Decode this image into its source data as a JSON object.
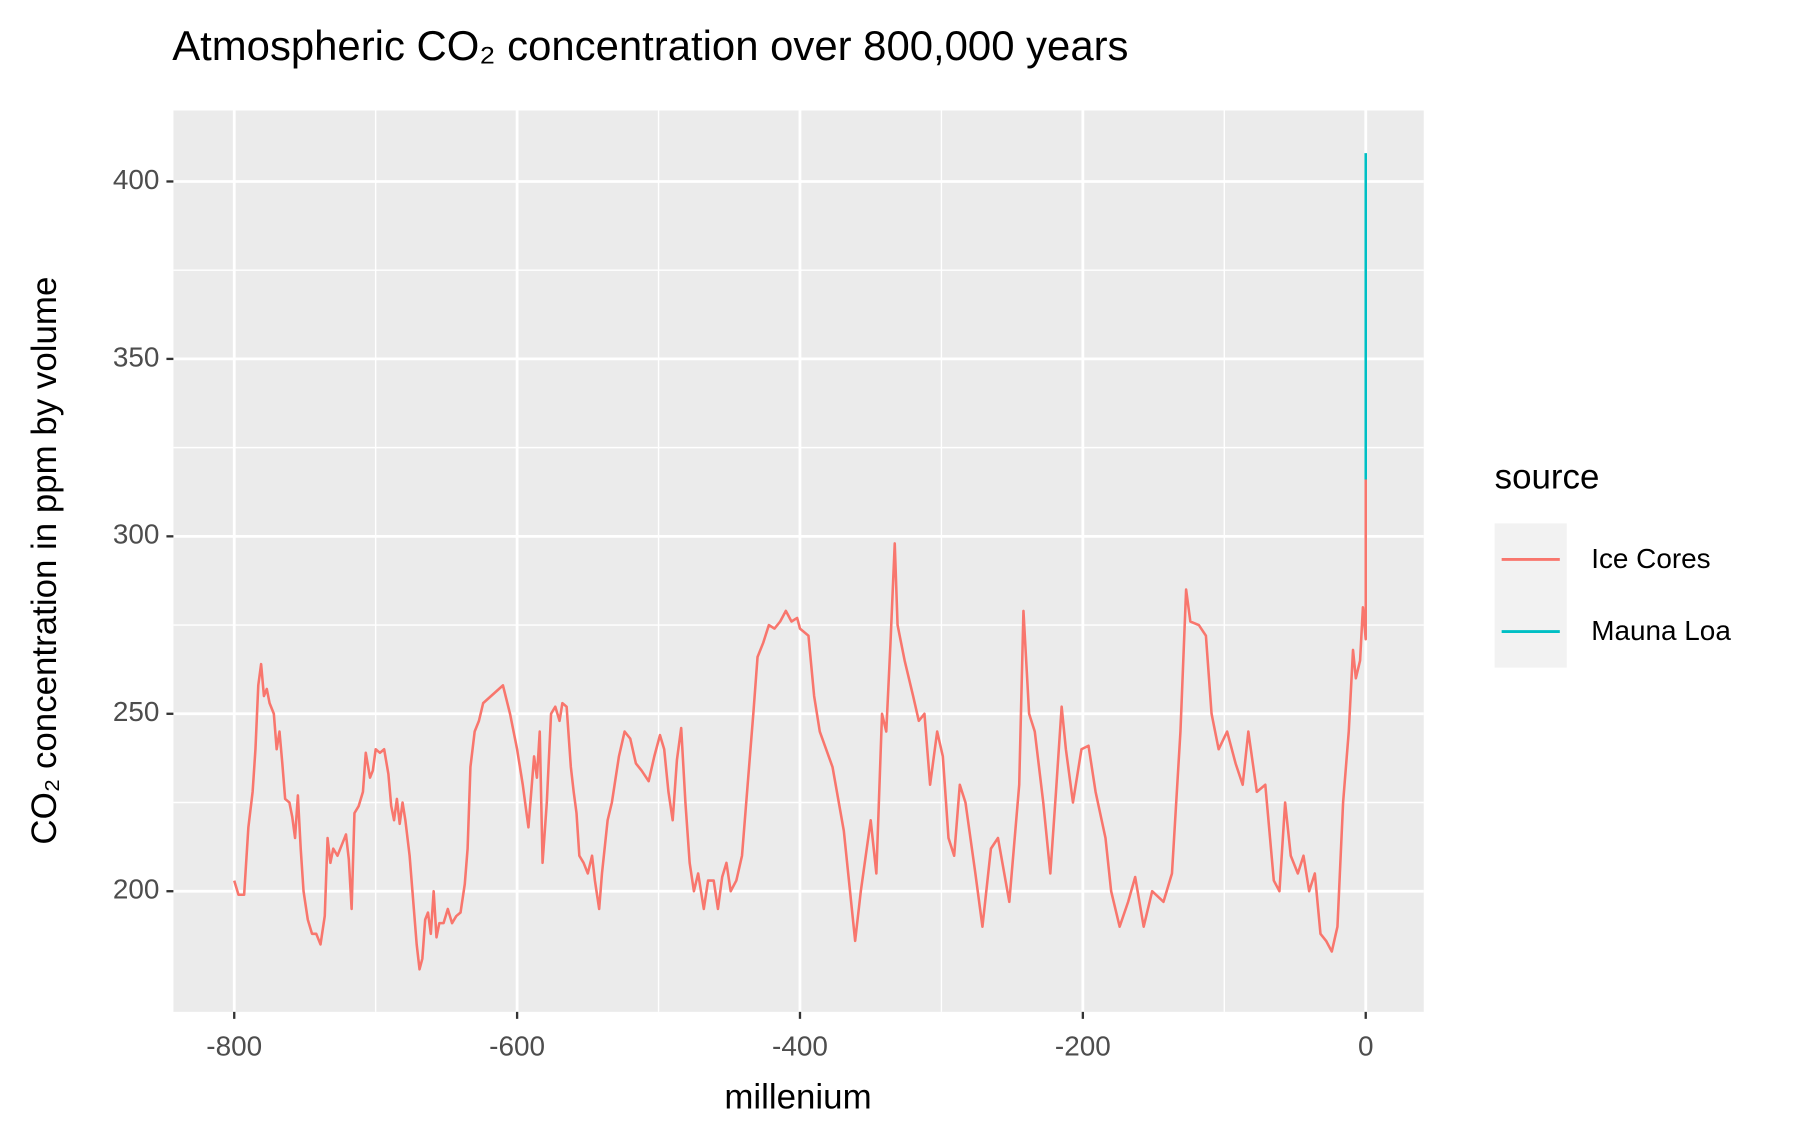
{
  "chart_data": {
    "type": "line",
    "title": "Atmospheric CO₂ concentration over 800,000 years",
    "x_label": "millenium",
    "y_label": "CO₂ concentration in ppm by volume",
    "legend_title": "source",
    "legend_position": "right",
    "grid": true,
    "xlim": [
      -843,
      41
    ],
    "ylim": [
      166,
      420
    ],
    "xticks": [
      -800,
      -600,
      -400,
      -200,
      0
    ],
    "yticks": [
      200,
      250,
      300,
      350,
      400
    ],
    "series": [
      {
        "name": "Ice Cores",
        "color": "#F8766D",
        "x": [
          -800,
          -797,
          -793,
          -790,
          -787,
          -785,
          -783,
          -781,
          -779,
          -777,
          -775,
          -772,
          -770,
          -768,
          -766,
          -764,
          -761,
          -759,
          -757,
          -755,
          -753,
          -751,
          -748,
          -745,
          -742,
          -739,
          -736,
          -734,
          -732,
          -730,
          -727,
          -724,
          -721,
          -719,
          -717,
          -715,
          -712,
          -709,
          -707,
          -704,
          -702,
          -700,
          -697,
          -694,
          -691,
          -689,
          -687,
          -685,
          -683,
          -681,
          -679,
          -676,
          -673,
          -671,
          -669,
          -667,
          -665,
          -663,
          -661,
          -659,
          -657,
          -655,
          -652,
          -649,
          -646,
          -643,
          -640,
          -637,
          -635,
          -633,
          -630,
          -627,
          -624,
          -610,
          -605,
          -600,
          -596,
          -592,
          -590,
          -588,
          -586,
          -584,
          -582,
          -579,
          -576,
          -573,
          -570,
          -568,
          -565,
          -562,
          -560,
          -558,
          -556,
          -553,
          -550,
          -547,
          -545,
          -542,
          -540,
          -536,
          -533,
          -528,
          -524,
          -520,
          -516,
          -512,
          -507,
          -503,
          -499,
          -496,
          -493,
          -490,
          -487,
          -484,
          -481,
          -478,
          -475,
          -472,
          -468,
          -465,
          -461,
          -458,
          -455,
          -452,
          -449,
          -445,
          -441,
          -437,
          -433,
          -430,
          -426,
          -422,
          -418,
          -414,
          -410,
          -406,
          -402,
          -400,
          -394,
          -390,
          -386,
          -377,
          -369,
          -361,
          -357,
          -350,
          -346,
          -342,
          -339,
          -336,
          -333,
          -331,
          -326,
          -320,
          -316,
          -312,
          -308,
          -303,
          -299,
          -295,
          -291,
          -287,
          -283,
          -276,
          -271,
          -265,
          -260,
          -252,
          -245,
          -242,
          -238,
          -234,
          -228,
          -223,
          -219,
          -215,
          -212,
          -207,
          -201,
          -196,
          -191,
          -184,
          -180,
          -174,
          -168,
          -163,
          -157,
          -151,
          -143,
          -137,
          -131,
          -127,
          -124,
          -118,
          -113,
          -109,
          -104,
          -98,
          -92,
          -87,
          -83,
          -77,
          -71,
          -65,
          -61,
          -57,
          -53,
          -48,
          -44,
          -40,
          -36,
          -32,
          -28,
          -24,
          -20,
          -16,
          -12,
          -9,
          -7,
          -4,
          -2,
          0,
          0
        ],
        "values": [
          203,
          199,
          199,
          218,
          228,
          240,
          258,
          264,
          255,
          257,
          253,
          250,
          240,
          245,
          236,
          226,
          225,
          221,
          215,
          227,
          212,
          200,
          192,
          188,
          188,
          185,
          193,
          215,
          208,
          212,
          210,
          213,
          216,
          209,
          195,
          222,
          224,
          228,
          239,
          232,
          234,
          240,
          239,
          240,
          233,
          224,
          220,
          226,
          219,
          225,
          220,
          210,
          195,
          185,
          178,
          181,
          192,
          194,
          188,
          200,
          187,
          191,
          191,
          195,
          191,
          193,
          194,
          202,
          212,
          235,
          245,
          248,
          253,
          258,
          250,
          240,
          230,
          218,
          228,
          238,
          232,
          245,
          208,
          225,
          250,
          252,
          248,
          253,
          252,
          235,
          228,
          222,
          210,
          208,
          205,
          210,
          203,
          195,
          205,
          220,
          225,
          238,
          245,
          243,
          236,
          234,
          231,
          238,
          244,
          240,
          228,
          220,
          237,
          246,
          225,
          208,
          200,
          205,
          195,
          203,
          203,
          195,
          204,
          208,
          200,
          203,
          210,
          230,
          250,
          266,
          270,
          275,
          274,
          276,
          279,
          276,
          277,
          274,
          272,
          255,
          245,
          235,
          217,
          186,
          200,
          220,
          205,
          250,
          245,
          270,
          298,
          275,
          265,
          255,
          248,
          250,
          230,
          245,
          238,
          215,
          210,
          230,
          225,
          205,
          190,
          212,
          215,
          197,
          230,
          279,
          250,
          245,
          225,
          205,
          228,
          252,
          240,
          225,
          240,
          241,
          228,
          215,
          200,
          190,
          197,
          204,
          190,
          200,
          197,
          205,
          245,
          285,
          276,
          275,
          272,
          250,
          240,
          245,
          236,
          230,
          245,
          228,
          230,
          203,
          200,
          225,
          210,
          205,
          210,
          200,
          205,
          188,
          186,
          183,
          190,
          225,
          245,
          268,
          260,
          265,
          280,
          271,
          316
        ]
      },
      {
        "name": "Mauna Loa",
        "color": "#00BFC4",
        "x": [
          0,
          0
        ],
        "values": [
          316,
          408
        ]
      }
    ]
  }
}
